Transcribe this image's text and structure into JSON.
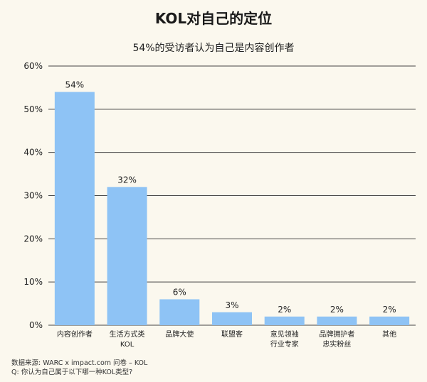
{
  "chart_data": {
    "type": "bar",
    "title": "KOL对自己的定位",
    "subtitle": "54%的受访者认为自己是内容创作者",
    "categories": [
      [
        "内容创作者"
      ],
      [
        "生活方式类",
        "KOL"
      ],
      [
        "品牌大使"
      ],
      [
        "联盟客"
      ],
      [
        "意见领袖",
        "行业专家"
      ],
      [
        "品牌拥护者",
        "忠实粉丝"
      ],
      [
        "其他"
      ]
    ],
    "values": [
      54,
      32,
      6,
      3,
      2,
      2,
      2
    ],
    "value_labels": [
      "54%",
      "32%",
      "6%",
      "3%",
      "2%",
      "2%",
      "2%"
    ],
    "ylim": [
      0,
      60
    ],
    "yticks": [
      0,
      10,
      20,
      30,
      40,
      50,
      60
    ],
    "ytick_labels": [
      "0%",
      "10%",
      "20%",
      "30%",
      "40%",
      "50%",
      "60%"
    ],
    "grid": true,
    "bar_color": "#8ec3f5"
  },
  "source": {
    "line1": "数据来源: WARC x impact.com 问卷 – KOL",
    "line2": "Q: 你认为自己属于以下哪一种KOL类型?"
  }
}
